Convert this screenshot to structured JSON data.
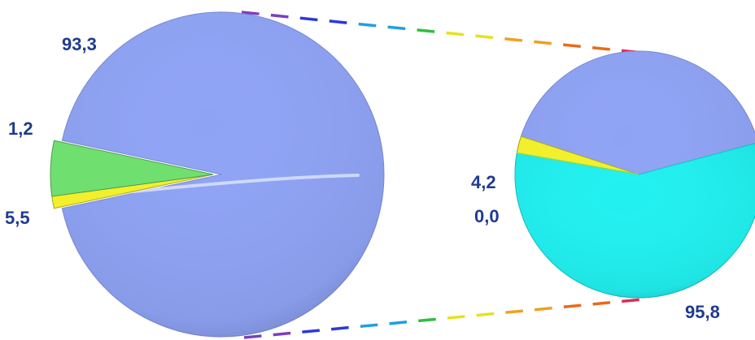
{
  "chart_data": [
    {
      "type": "pie",
      "role": "main",
      "values": [
        93.3,
        1.2,
        5.5
      ],
      "labels": [
        "93,3",
        "1,2",
        "5,5"
      ],
      "colors": [
        "#8fa3f5",
        "#f2ef2c",
        "#6fe070"
      ]
    },
    {
      "type": "pie",
      "role": "detail",
      "values": [
        95.8,
        4.2,
        0.0
      ],
      "labels": [
        "95,8",
        "4,2",
        "0,0"
      ],
      "colors": [
        "#21f0f0",
        "#f2ef2c",
        "#6fe070"
      ],
      "background_color": "#8fa3f5"
    }
  ],
  "connector_colors": [
    "#7b3fbf",
    "#2a3ad6",
    "#1fa0e0",
    "#2ebf3a",
    "#e8e020",
    "#f0a020",
    "#ea6a1a",
    "#e02a5a"
  ]
}
